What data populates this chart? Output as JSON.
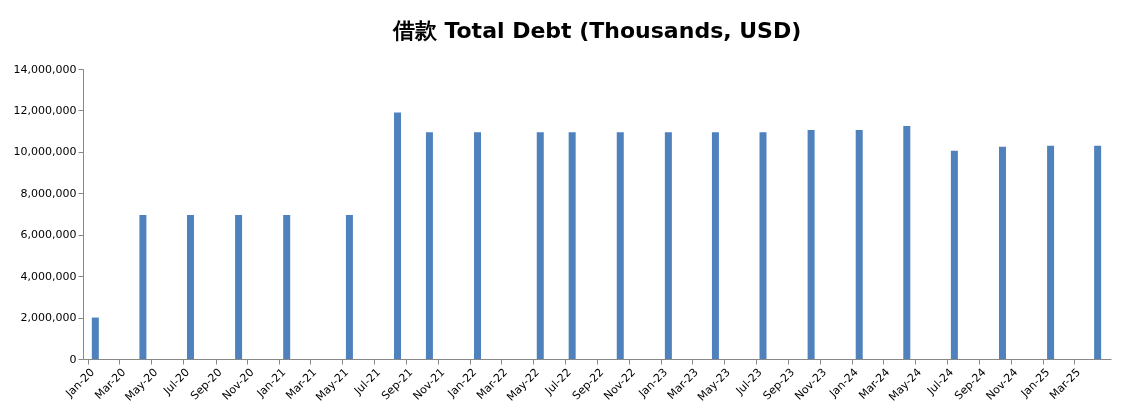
{
  "chart_data": {
    "type": "bar",
    "title": "借款 Total Debt (Thousands, USD)",
    "x": [
      "2020-01-15",
      "2020-04-15",
      "2020-07-15",
      "2020-10-15",
      "2021-01-15",
      "2021-05-15",
      "2021-08-15",
      "2021-10-15",
      "2022-01-15",
      "2022-05-15",
      "2022-07-15",
      "2022-10-15",
      "2023-01-15",
      "2023-04-15",
      "2023-07-15",
      "2023-10-15",
      "2024-01-15",
      "2024-04-15",
      "2024-07-15",
      "2024-10-15",
      "2025-01-15",
      "2025-04-15"
    ],
    "values": [
      2000000,
      6950000,
      6950000,
      6950000,
      6950000,
      6950000,
      11900000,
      10950000,
      10950000,
      10950000,
      10950000,
      10950000,
      10950000,
      10950000,
      10950000,
      11050000,
      11050000,
      11250000,
      10050000,
      10250000,
      10300000,
      10300000
    ],
    "color": "#4f81bd",
    "xlim": [
      "2020-01",
      "2025-05"
    ],
    "xticks": [
      {
        "value": "2020-01",
        "label": "Jan-20"
      },
      {
        "value": "2020-03",
        "label": "Mar-20"
      },
      {
        "value": "2020-05",
        "label": "May-20"
      },
      {
        "value": "2020-07",
        "label": "Jul-20"
      },
      {
        "value": "2020-09",
        "label": "Sep-20"
      },
      {
        "value": "2020-11",
        "label": "Nov-20"
      },
      {
        "value": "2021-01",
        "label": "Jan-21"
      },
      {
        "value": "2021-03",
        "label": "Mar-21"
      },
      {
        "value": "2021-05",
        "label": "May-21"
      },
      {
        "value": "2021-07",
        "label": "Jul-21"
      },
      {
        "value": "2021-09",
        "label": "Sep-21"
      },
      {
        "value": "2021-11",
        "label": "Nov-21"
      },
      {
        "value": "2022-01",
        "label": "Jan-22"
      },
      {
        "value": "2022-03",
        "label": "Mar-22"
      },
      {
        "value": "2022-05",
        "label": "May-22"
      },
      {
        "value": "2022-07",
        "label": "Jul-22"
      },
      {
        "value": "2022-09",
        "label": "Sep-22"
      },
      {
        "value": "2022-11",
        "label": "Nov-22"
      },
      {
        "value": "2023-01",
        "label": "Jan-23"
      },
      {
        "value": "2023-03",
        "label": "Mar-23"
      },
      {
        "value": "2023-05",
        "label": "May-23"
      },
      {
        "value": "2023-07",
        "label": "Jul-23"
      },
      {
        "value": "2023-09",
        "label": "Sep-23"
      },
      {
        "value": "2023-11",
        "label": "Nov-23"
      },
      {
        "value": "2024-01",
        "label": "Jan-24"
      },
      {
        "value": "2024-03",
        "label": "Mar-24"
      },
      {
        "value": "2024-05",
        "label": "May-24"
      },
      {
        "value": "2024-07",
        "label": "Jul-24"
      },
      {
        "value": "2024-09",
        "label": "Sep-24"
      },
      {
        "value": "2024-11",
        "label": "Nov-24"
      },
      {
        "value": "2025-01",
        "label": "Jan-25"
      },
      {
        "value": "2025-03",
        "label": "Mar-25"
      }
    ],
    "ylim": [
      0,
      14000000
    ],
    "yticks": [
      {
        "value": 0,
        "label": "0"
      },
      {
        "value": 2000000,
        "label": "2,000,000"
      },
      {
        "value": 4000000,
        "label": "4,000,000"
      },
      {
        "value": 6000000,
        "label": "6,000,000"
      },
      {
        "value": 8000000,
        "label": "8,000,000"
      },
      {
        "value": 10000000,
        "label": "10,000,000"
      },
      {
        "value": 12000000,
        "label": "12,000,000"
      },
      {
        "value": 14000000,
        "label": "14,000,000"
      }
    ],
    "grid": false
  }
}
